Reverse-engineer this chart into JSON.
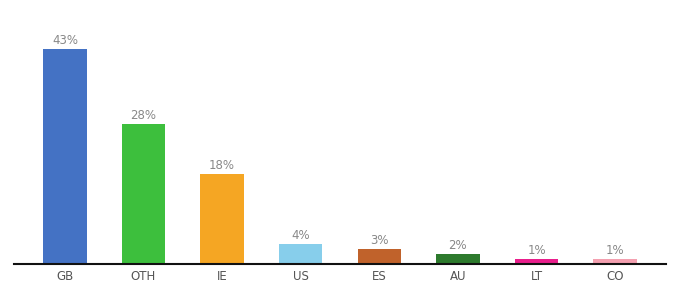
{
  "categories": [
    "GB",
    "OTH",
    "IE",
    "US",
    "ES",
    "AU",
    "LT",
    "CO"
  ],
  "values": [
    43,
    28,
    18,
    4,
    3,
    2,
    1,
    1
  ],
  "bar_colors": [
    "#4472c4",
    "#3dbf3d",
    "#f5a623",
    "#87ceeb",
    "#c0622b",
    "#2d7a2d",
    "#e91e8c",
    "#f4a0b0"
  ],
  "labels": [
    "43%",
    "28%",
    "18%",
    "4%",
    "3%",
    "2%",
    "1%",
    "1%"
  ],
  "ylim": [
    0,
    48
  ],
  "background_color": "#ffffff",
  "label_fontsize": 8.5,
  "tick_fontsize": 8.5,
  "bar_width": 0.55,
  "label_color": "#888888"
}
